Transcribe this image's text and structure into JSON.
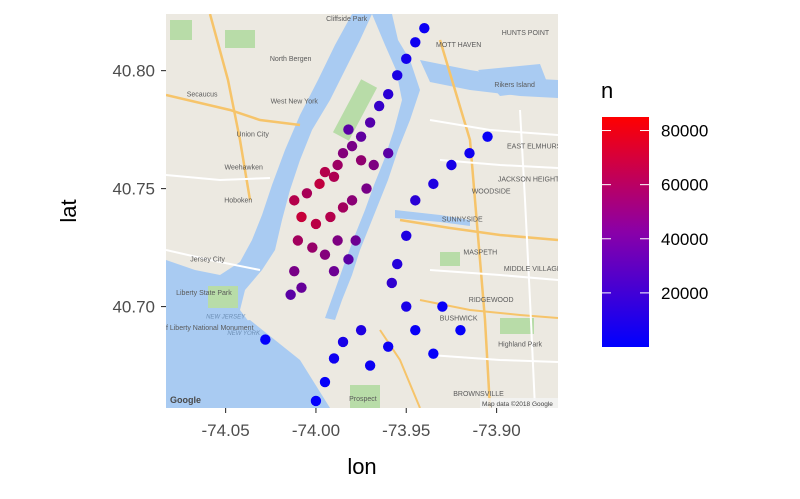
{
  "chart_data": {
    "type": "scatter",
    "description_basemap": "street map basemap",
    "xlabel": "lon",
    "ylabel": "lat",
    "xlim": [
      -74.083,
      -73.866
    ],
    "ylim": [
      40.657,
      40.824
    ],
    "x_ticks": [
      {
        "value": -74.05,
        "label": "-74.05"
      },
      {
        "value": -74.0,
        "label": "-74.00"
      },
      {
        "value": -73.95,
        "label": "-73.95"
      },
      {
        "value": -73.9,
        "label": "-73.90"
      }
    ],
    "y_ticks": [
      {
        "value": 40.7,
        "label": "40.70"
      },
      {
        "value": 40.75,
        "label": "40.75"
      },
      {
        "value": 40.8,
        "label": "40.80"
      }
    ],
    "color_scale": {
      "title": "n",
      "low_color": "#0000ff",
      "high_color": "#ff0000",
      "limits": [
        0,
        85000
      ],
      "breaks": [
        {
          "value": 20000,
          "label": "20000"
        },
        {
          "value": 40000,
          "label": "40000"
        },
        {
          "value": 60000,
          "label": "60000"
        },
        {
          "value": 80000,
          "label": "80000"
        }
      ]
    },
    "points": [
      {
        "lon": -74.012,
        "lat": 40.745,
        "n": 60000
      },
      {
        "lon": -74.005,
        "lat": 40.748,
        "n": 56000
      },
      {
        "lon": -73.998,
        "lat": 40.752,
        "n": 64000
      },
      {
        "lon": -73.995,
        "lat": 40.757,
        "n": 60000
      },
      {
        "lon": -73.988,
        "lat": 40.76,
        "n": 52000
      },
      {
        "lon": -73.99,
        "lat": 40.755,
        "n": 58000
      },
      {
        "lon": -73.985,
        "lat": 40.765,
        "n": 44000
      },
      {
        "lon": -73.98,
        "lat": 40.768,
        "n": 40000
      },
      {
        "lon": -73.975,
        "lat": 40.772,
        "n": 32000
      },
      {
        "lon": -73.982,
        "lat": 40.775,
        "n": 30000
      },
      {
        "lon": -73.97,
        "lat": 40.778,
        "n": 28000
      },
      {
        "lon": -73.965,
        "lat": 40.785,
        "n": 18000
      },
      {
        "lon": -73.96,
        "lat": 40.79,
        "n": 14000
      },
      {
        "lon": -73.955,
        "lat": 40.798,
        "n": 9000
      },
      {
        "lon": -73.95,
        "lat": 40.805,
        "n": 6000
      },
      {
        "lon": -73.945,
        "lat": 40.812,
        "n": 5000
      },
      {
        "lon": -73.94,
        "lat": 40.818,
        "n": 4000
      },
      {
        "lon": -73.975,
        "lat": 40.762,
        "n": 48000
      },
      {
        "lon": -73.968,
        "lat": 40.76,
        "n": 42000
      },
      {
        "lon": -73.96,
        "lat": 40.765,
        "n": 30000
      },
      {
        "lon": -74.008,
        "lat": 40.738,
        "n": 66000
      },
      {
        "lon": -74.0,
        "lat": 40.735,
        "n": 62000
      },
      {
        "lon": -73.992,
        "lat": 40.738,
        "n": 60000
      },
      {
        "lon": -73.985,
        "lat": 40.742,
        "n": 54000
      },
      {
        "lon": -74.01,
        "lat": 40.728,
        "n": 54000
      },
      {
        "lon": -74.002,
        "lat": 40.725,
        "n": 50000
      },
      {
        "lon": -73.995,
        "lat": 40.722,
        "n": 44000
      },
      {
        "lon": -73.988,
        "lat": 40.728,
        "n": 42000
      },
      {
        "lon": -74.012,
        "lat": 40.715,
        "n": 40000
      },
      {
        "lon": -74.008,
        "lat": 40.708,
        "n": 34000
      },
      {
        "lon": -74.014,
        "lat": 40.705,
        "n": 30000
      },
      {
        "lon": -73.99,
        "lat": 40.715,
        "n": 36000
      },
      {
        "lon": -73.982,
        "lat": 40.72,
        "n": 30000
      },
      {
        "lon": -73.978,
        "lat": 40.728,
        "n": 36000
      },
      {
        "lon": -73.98,
        "lat": 40.745,
        "n": 46000
      },
      {
        "lon": -73.972,
        "lat": 40.75,
        "n": 40000
      },
      {
        "lon": -73.945,
        "lat": 40.745,
        "n": 14000
      },
      {
        "lon": -73.935,
        "lat": 40.752,
        "n": 10000
      },
      {
        "lon": -73.925,
        "lat": 40.76,
        "n": 8000
      },
      {
        "lon": -73.915,
        "lat": 40.765,
        "n": 5000
      },
      {
        "lon": -73.905,
        "lat": 40.772,
        "n": 3000
      },
      {
        "lon": -73.95,
        "lat": 40.73,
        "n": 10000
      },
      {
        "lon": -73.955,
        "lat": 40.718,
        "n": 12000
      },
      {
        "lon": -73.958,
        "lat": 40.71,
        "n": 16000
      },
      {
        "lon": -73.95,
        "lat": 40.7,
        "n": 8000
      },
      {
        "lon": -73.975,
        "lat": 40.69,
        "n": 10000
      },
      {
        "lon": -73.985,
        "lat": 40.685,
        "n": 8000
      },
      {
        "lon": -73.99,
        "lat": 40.678,
        "n": 5000
      },
      {
        "lon": -73.97,
        "lat": 40.675,
        "n": 4000
      },
      {
        "lon": -73.96,
        "lat": 40.683,
        "n": 4000
      },
      {
        "lon": -73.945,
        "lat": 40.69,
        "n": 3000
      },
      {
        "lon": -73.93,
        "lat": 40.7,
        "n": 3000
      },
      {
        "lon": -73.92,
        "lat": 40.69,
        "n": 2000
      },
      {
        "lon": -73.935,
        "lat": 40.68,
        "n": 2000
      },
      {
        "lon": -73.995,
        "lat": 40.668,
        "n": 2000
      },
      {
        "lon": -74.0,
        "lat": 40.66,
        "n": 1000
      },
      {
        "lon": -74.028,
        "lat": 40.686,
        "n": 1000
      }
    ]
  },
  "map": {
    "attribution": "Map data ©2018 Google",
    "logo": "Google",
    "labels": [
      {
        "text": "Cliffside Park",
        "lon": -73.983,
        "lat": 40.821
      },
      {
        "text": "North Bergen",
        "lon": -74.014,
        "lat": 40.804
      },
      {
        "text": "Secaucus",
        "lon": -74.063,
        "lat": 40.789
      },
      {
        "text": "West New York",
        "lon": -74.012,
        "lat": 40.786
      },
      {
        "text": "Union City",
        "lon": -74.035,
        "lat": 40.772
      },
      {
        "text": "Weehawken",
        "lon": -74.04,
        "lat": 40.758
      },
      {
        "text": "Hoboken",
        "lon": -74.043,
        "lat": 40.744
      },
      {
        "text": "Jersey City",
        "lon": -74.06,
        "lat": 40.719
      },
      {
        "text": "Liberty State Park",
        "lon": -74.062,
        "lat": 40.705
      },
      {
        "text": "Statue of Liberty National Monument",
        "lon": -74.066,
        "lat": 40.69
      },
      {
        "text": "MOTT HAVEN",
        "lon": -73.921,
        "lat": 40.81
      },
      {
        "text": "HUNTS POINT",
        "lon": -73.884,
        "lat": 40.815
      },
      {
        "text": "Rikers Island",
        "lon": -73.89,
        "lat": 40.793
      },
      {
        "text": "EAST ELMHURST",
        "lon": -73.878,
        "lat": 40.767
      },
      {
        "text": "JACKSON HEIGHTS",
        "lon": -73.881,
        "lat": 40.753
      },
      {
        "text": "WOODSIDE",
        "lon": -73.903,
        "lat": 40.748
      },
      {
        "text": "SUNNYSIDE",
        "lon": -73.919,
        "lat": 40.736
      },
      {
        "text": "MASPETH",
        "lon": -73.909,
        "lat": 40.722
      },
      {
        "text": "MIDDLE VILLAGE",
        "lon": -73.88,
        "lat": 40.715
      },
      {
        "text": "RIDGEWOOD",
        "lon": -73.903,
        "lat": 40.702
      },
      {
        "text": "BUSHWICK",
        "lon": -73.921,
        "lat": 40.694
      },
      {
        "text": "Highland Park",
        "lon": -73.887,
        "lat": 40.683
      },
      {
        "text": "BROWNSVILLE",
        "lon": -73.91,
        "lat": 40.662
      },
      {
        "text": "Prospect",
        "lon": -73.974,
        "lat": 40.66
      },
      {
        "text": "NEW JERSEY",
        "lon": -74.05,
        "lat": 40.695
      },
      {
        "text": "NEW YORK",
        "lon": -74.04,
        "lat": 40.688
      }
    ]
  }
}
